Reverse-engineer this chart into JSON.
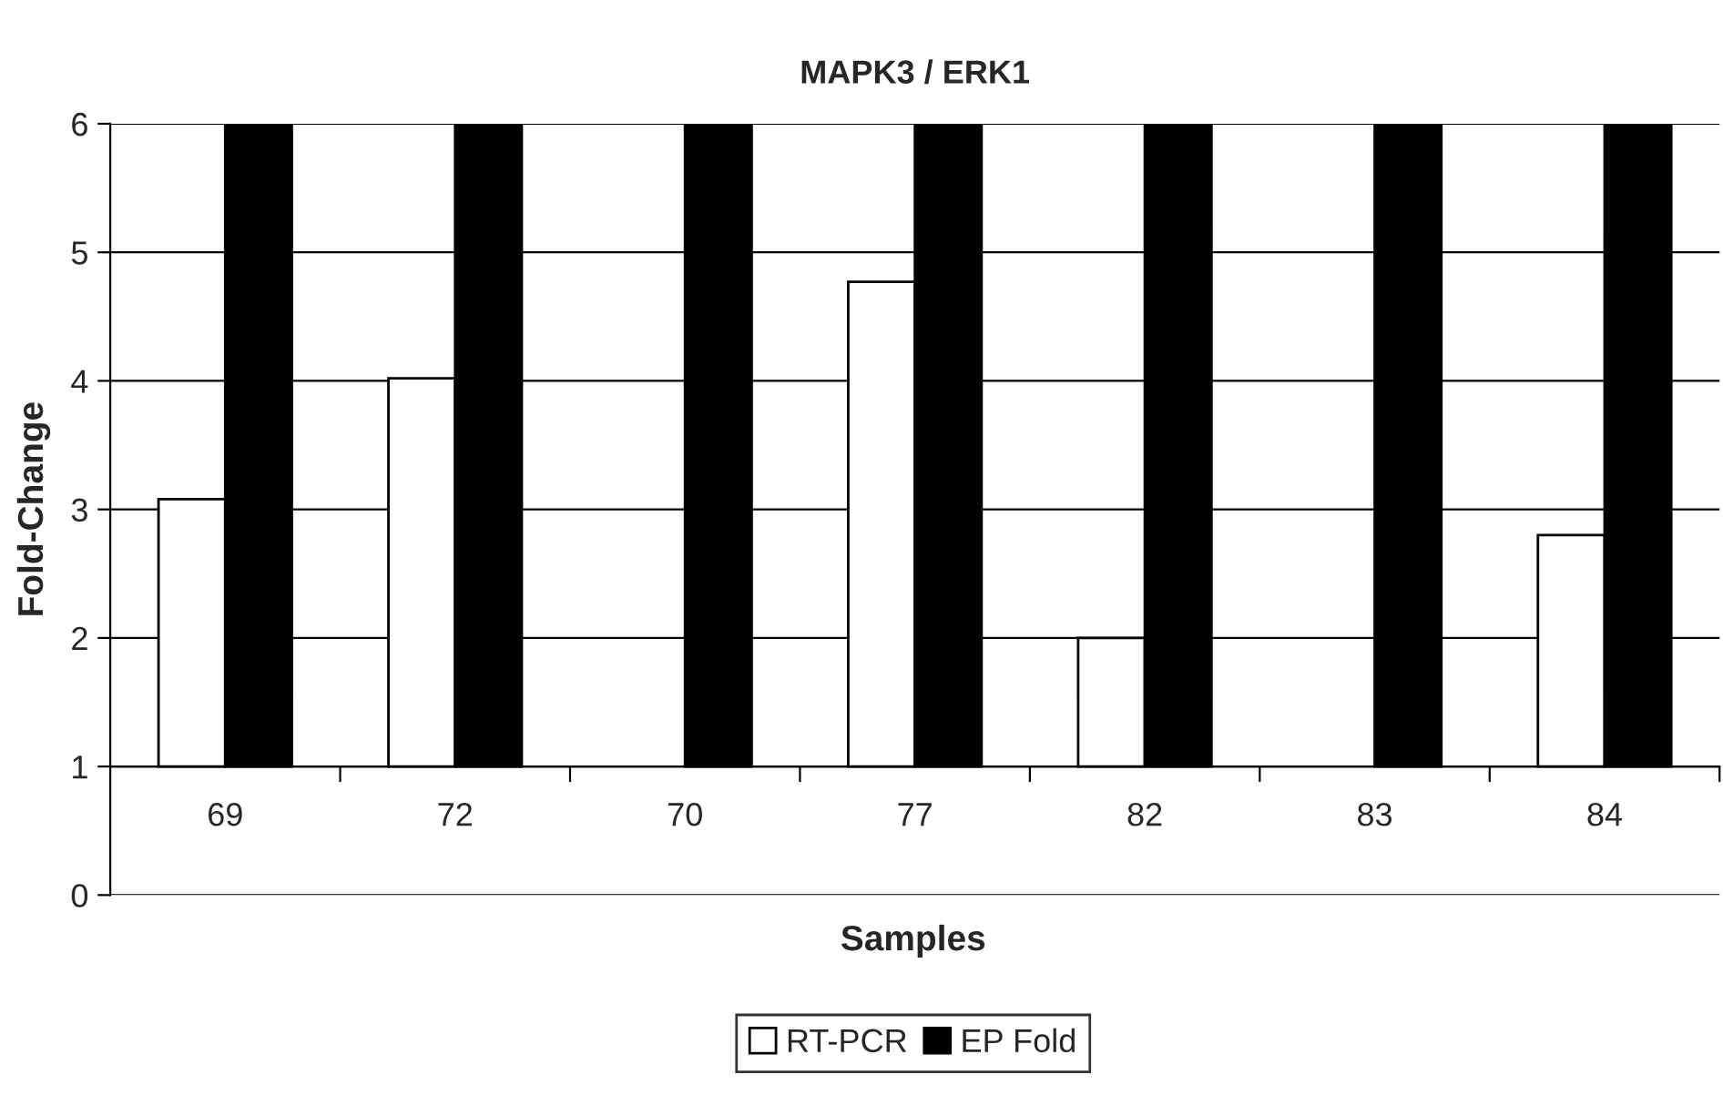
{
  "chart_data": {
    "type": "bar",
    "title": "MAPK3 / ERK1",
    "xlabel": "Samples",
    "ylabel": "Fold-Change",
    "categories": [
      "69",
      "72",
      "70",
      "77",
      "82",
      "83",
      "84"
    ],
    "series": [
      {
        "name": "RT-PCR",
        "color": "#ffffff",
        "values": [
          2.08,
          3.02,
          null,
          3.77,
          1.0,
          null,
          1.8
        ],
        "base": [
          1,
          1,
          null,
          1,
          1,
          null,
          1
        ]
      },
      {
        "name": "EP Fold",
        "color": "#000000",
        "values": [
          5,
          5,
          5,
          5,
          5,
          5,
          5
        ],
        "base": [
          1,
          1,
          1,
          1,
          1,
          1,
          1
        ]
      }
    ],
    "ylim": [
      0,
      6
    ],
    "yticks": [
      0,
      1,
      2,
      3,
      4,
      5,
      6
    ],
    "grid": "y",
    "legend": "bottom"
  }
}
